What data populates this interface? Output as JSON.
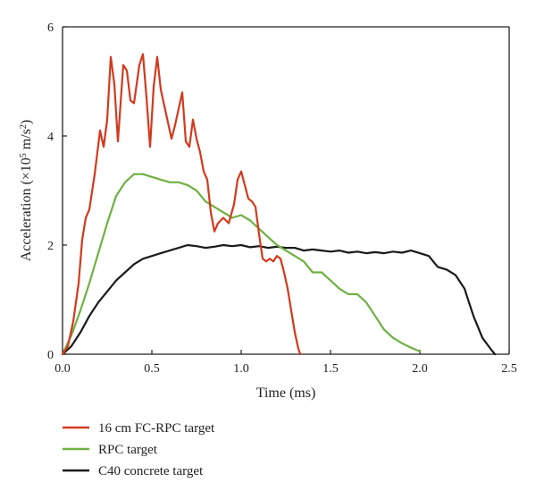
{
  "chart_data": {
    "type": "line",
    "title": "",
    "xlabel": "Time (ms)",
    "ylabel": {
      "prefix": "Acceleration (×10",
      "exp1": "5",
      "mid": " m/s",
      "exp2": "2",
      "suffix": ")"
    },
    "xlim": [
      0,
      2.5
    ],
    "ylim": [
      0,
      6
    ],
    "xticks": [
      "0.0",
      "0.5",
      "1.0",
      "1.5",
      "2.0",
      "2.5"
    ],
    "yticks": [
      "0",
      "2",
      "4",
      "6"
    ],
    "grid": false,
    "legend_position": "bottom-left",
    "series": [
      {
        "name": "16 cm FC-RPC target",
        "color": "#d23a1e",
        "x": [
          0,
          0.03,
          0.06,
          0.09,
          0.11,
          0.13,
          0.15,
          0.18,
          0.21,
          0.23,
          0.25,
          0.27,
          0.29,
          0.31,
          0.34,
          0.36,
          0.38,
          0.4,
          0.43,
          0.45,
          0.47,
          0.49,
          0.51,
          0.53,
          0.55,
          0.58,
          0.61,
          0.63,
          0.65,
          0.67,
          0.69,
          0.71,
          0.73,
          0.75,
          0.77,
          0.79,
          0.81,
          0.83,
          0.85,
          0.87,
          0.9,
          0.93,
          0.96,
          0.98,
          1.0,
          1.02,
          1.04,
          1.06,
          1.08,
          1.1,
          1.12,
          1.14,
          1.16,
          1.18,
          1.2,
          1.22,
          1.24,
          1.26,
          1.28,
          1.3,
          1.32,
          1.33
        ],
        "y": [
          0,
          0.15,
          0.6,
          1.3,
          2.1,
          2.5,
          2.65,
          3.3,
          4.1,
          3.8,
          4.3,
          5.45,
          4.95,
          3.9,
          5.3,
          5.2,
          4.65,
          4.6,
          5.3,
          5.5,
          4.7,
          3.8,
          4.9,
          5.45,
          4.85,
          4.4,
          3.95,
          4.2,
          4.5,
          4.8,
          3.9,
          3.8,
          4.3,
          3.95,
          3.7,
          3.35,
          3.2,
          2.6,
          2.25,
          2.4,
          2.5,
          2.4,
          2.75,
          3.2,
          3.35,
          3.1,
          2.85,
          2.8,
          2.7,
          2.2,
          1.75,
          1.7,
          1.75,
          1.7,
          1.8,
          1.75,
          1.5,
          1.2,
          0.8,
          0.4,
          0.1,
          0
        ]
      },
      {
        "name": "RPC target",
        "color": "#6fb043",
        "x": [
          0,
          0.05,
          0.1,
          0.15,
          0.2,
          0.25,
          0.3,
          0.35,
          0.4,
          0.45,
          0.5,
          0.55,
          0.6,
          0.65,
          0.7,
          0.75,
          0.8,
          0.85,
          0.9,
          0.95,
          1.0,
          1.05,
          1.1,
          1.15,
          1.2,
          1.25,
          1.3,
          1.35,
          1.4,
          1.45,
          1.5,
          1.55,
          1.6,
          1.65,
          1.7,
          1.75,
          1.8,
          1.85,
          1.9,
          1.95,
          2.0
        ],
        "y": [
          0,
          0.35,
          0.8,
          1.3,
          1.85,
          2.4,
          2.9,
          3.15,
          3.3,
          3.3,
          3.25,
          3.2,
          3.15,
          3.15,
          3.1,
          3.0,
          2.8,
          2.7,
          2.6,
          2.5,
          2.55,
          2.45,
          2.3,
          2.15,
          2.0,
          1.9,
          1.8,
          1.7,
          1.5,
          1.5,
          1.35,
          1.2,
          1.1,
          1.1,
          0.95,
          0.7,
          0.45,
          0.3,
          0.2,
          0.12,
          0.05
        ]
      },
      {
        "name": "C40 concrete target",
        "color": "#1a1a1a",
        "x": [
          0,
          0.05,
          0.1,
          0.15,
          0.2,
          0.25,
          0.3,
          0.35,
          0.4,
          0.45,
          0.5,
          0.55,
          0.6,
          0.65,
          0.7,
          0.75,
          0.8,
          0.85,
          0.9,
          0.95,
          1.0,
          1.05,
          1.1,
          1.15,
          1.2,
          1.25,
          1.3,
          1.35,
          1.4,
          1.45,
          1.5,
          1.55,
          1.6,
          1.65,
          1.7,
          1.75,
          1.8,
          1.85,
          1.9,
          1.95,
          2.0,
          2.05,
          2.1,
          2.15,
          2.2,
          2.25,
          2.3,
          2.35,
          2.4,
          2.42
        ],
        "y": [
          0,
          0.15,
          0.4,
          0.7,
          0.95,
          1.15,
          1.35,
          1.5,
          1.65,
          1.75,
          1.8,
          1.85,
          1.9,
          1.95,
          2.0,
          1.98,
          1.95,
          1.97,
          2.0,
          1.98,
          2.0,
          1.96,
          1.98,
          1.95,
          1.97,
          1.95,
          1.95,
          1.9,
          1.92,
          1.9,
          1.88,
          1.9,
          1.86,
          1.88,
          1.85,
          1.87,
          1.85,
          1.88,
          1.86,
          1.9,
          1.85,
          1.8,
          1.6,
          1.55,
          1.45,
          1.2,
          0.7,
          0.3,
          0.08,
          0
        ]
      }
    ]
  }
}
